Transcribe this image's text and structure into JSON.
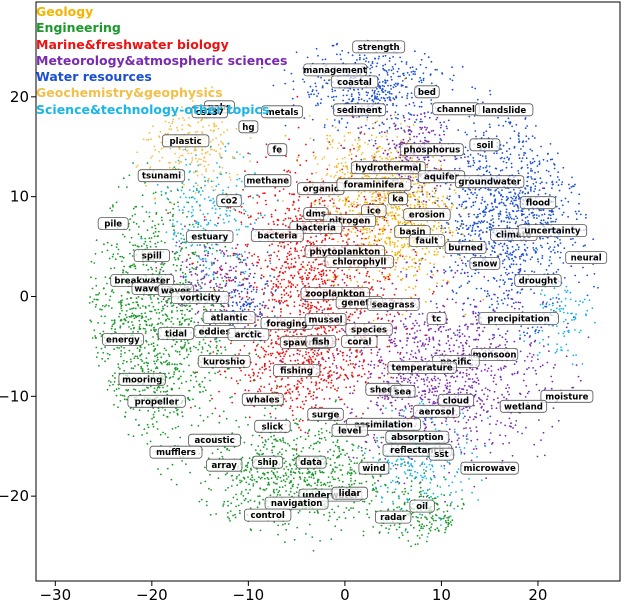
{
  "chart_data": {
    "type": "scatter",
    "title": "",
    "xlabel": "",
    "ylabel": "",
    "xlim": [
      -32,
      28.5
    ],
    "ylim": [
      -28.5,
      29.5
    ],
    "xticks": [
      -30,
      -20,
      -10,
      0,
      10,
      20
    ],
    "yticks": [
      -20,
      -10,
      0,
      10,
      20
    ],
    "xtick_labels": [
      "−30",
      "−20",
      "−10",
      "0",
      "10",
      "20"
    ],
    "ytick_labels": [
      "−20",
      "−10",
      "0",
      "10",
      "20"
    ],
    "legend_placement": "top-left",
    "categories": [
      {
        "name": "Geology",
        "color": "#f4b400"
      },
      {
        "name": "Engineering",
        "color": "#1a9a2a"
      },
      {
        "name": "Marine&freshwater biology",
        "color": "#ee1111"
      },
      {
        "name": "Meteorology&atmospheric sciences",
        "color": "#7a2ab0"
      },
      {
        "name": "Water resources",
        "color": "#1a4fd6"
      },
      {
        "name": "Geochemistry&geophysics",
        "color": "#f2c04a"
      },
      {
        "name": "Science&technology-other topics",
        "color": "#19b6e6"
      }
    ],
    "clusters": [
      {
        "category": 2,
        "x": -3,
        "y": 2,
        "rx": 8,
        "ry": 10,
        "n": 1300
      },
      {
        "category": 2,
        "x": -5,
        "y": -7,
        "rx": 6,
        "ry": 5,
        "n": 400
      },
      {
        "category": 0,
        "x": 5,
        "y": 8,
        "rx": 6,
        "ry": 7,
        "n": 700
      },
      {
        "category": 5,
        "x": 3,
        "y": 12,
        "rx": 6,
        "ry": 5,
        "n": 350
      },
      {
        "category": 5,
        "x": -16,
        "y": 15,
        "rx": 5,
        "ry": 4,
        "n": 250
      },
      {
        "category": 4,
        "x": 17,
        "y": 8,
        "rx": 7,
        "ry": 9,
        "n": 1200
      },
      {
        "category": 4,
        "x": 3,
        "y": 21,
        "rx": 7,
        "ry": 4,
        "n": 500
      },
      {
        "category": 4,
        "x": -10,
        "y": -1,
        "rx": 3,
        "ry": 3,
        "n": 120
      },
      {
        "category": 3,
        "x": 10,
        "y": -8,
        "rx": 10,
        "ry": 8,
        "n": 1100
      },
      {
        "category": 3,
        "x": 7,
        "y": 14,
        "rx": 4,
        "ry": 4,
        "n": 250
      },
      {
        "category": 3,
        "x": -14,
        "y": 2,
        "rx": 4,
        "ry": 4,
        "n": 200
      },
      {
        "category": 1,
        "x": -20,
        "y": -3,
        "rx": 7,
        "ry": 12,
        "n": 1300
      },
      {
        "category": 1,
        "x": -5,
        "y": -18,
        "rx": 9,
        "ry": 5,
        "n": 800
      },
      {
        "category": 1,
        "x": 8,
        "y": -22,
        "rx": 4,
        "ry": 3,
        "n": 200
      },
      {
        "category": 6,
        "x": -14,
        "y": 8,
        "rx": 5,
        "ry": 6,
        "n": 250
      },
      {
        "category": 6,
        "x": 8,
        "y": -16,
        "rx": 5,
        "ry": 5,
        "n": 250
      },
      {
        "category": 6,
        "x": 22,
        "y": -2,
        "rx": 3,
        "ry": 4,
        "n": 100
      }
    ],
    "keywords": [
      {
        "text": "strength",
        "x": 3.5,
        "y": 25
      },
      {
        "text": "management",
        "x": -1,
        "y": 22.7
      },
      {
        "text": "coastal",
        "x": 1,
        "y": 21.5
      },
      {
        "text": "bed",
        "x": 8.5,
        "y": 20.5
      },
      {
        "text": "pahs",
        "x": -13,
        "y": 19
      },
      {
        "text": "metals",
        "x": -6.5,
        "y": 18.5
      },
      {
        "text": "cs137",
        "x": -14,
        "y": 18.5
      },
      {
        "text": "sediment",
        "x": 1.5,
        "y": 18.7
      },
      {
        "text": "channel",
        "x": 11.5,
        "y": 18.8
      },
      {
        "text": "landslide",
        "x": 16.5,
        "y": 18.7
      },
      {
        "text": "hg",
        "x": -10,
        "y": 17
      },
      {
        "text": "plastic",
        "x": -16.5,
        "y": 15.6
      },
      {
        "text": "fe",
        "x": -7,
        "y": 14.7
      },
      {
        "text": "soil",
        "x": 14.5,
        "y": 15.2
      },
      {
        "text": "phosphorus",
        "x": 9,
        "y": 14.7
      },
      {
        "text": "hydrothermal",
        "x": 4.5,
        "y": 12.9
      },
      {
        "text": "tsunami",
        "x": -19,
        "y": 12.1
      },
      {
        "text": "methane",
        "x": -8,
        "y": 11.6
      },
      {
        "text": "organic",
        "x": -2.5,
        "y": 10.8
      },
      {
        "text": "foraminifera",
        "x": 3,
        "y": 11.2
      },
      {
        "text": "aquifer",
        "x": 10,
        "y": 12
      },
      {
        "text": "groundwater",
        "x": 15,
        "y": 11.5
      },
      {
        "text": "co2",
        "x": -12,
        "y": 9.6
      },
      {
        "text": "ka",
        "x": 5.5,
        "y": 9.8
      },
      {
        "text": "flood",
        "x": 20,
        "y": 9.4
      },
      {
        "text": "dms",
        "x": -3,
        "y": 8.3
      },
      {
        "text": "ice",
        "x": 3,
        "y": 8.6
      },
      {
        "text": "erosion",
        "x": 8.5,
        "y": 8.2
      },
      {
        "text": "nitrogen",
        "x": 0.5,
        "y": 7.6
      },
      {
        "text": "pile",
        "x": -24,
        "y": 7.3
      },
      {
        "text": "bacteria",
        "x": -3,
        "y": 6.9
      },
      {
        "text": "basin",
        "x": 7,
        "y": 6.5
      },
      {
        "text": "bacteria",
        "x": -7,
        "y": 6.1
      },
      {
        "text": "estuary",
        "x": -14,
        "y": 6
      },
      {
        "text": "climate",
        "x": 17.5,
        "y": 6.2
      },
      {
        "text": "uncertainty",
        "x": 21.5,
        "y": 6.6
      },
      {
        "text": "fault",
        "x": 8.5,
        "y": 5.6
      },
      {
        "text": "burned",
        "x": 12.5,
        "y": 4.9
      },
      {
        "text": "phytoplankton",
        "x": 0,
        "y": 4.5
      },
      {
        "text": "spill",
        "x": -20,
        "y": 4.1
      },
      {
        "text": "chlorophyll",
        "x": 1.5,
        "y": 3.5
      },
      {
        "text": "neural",
        "x": 25,
        "y": 3.9
      },
      {
        "text": "snow",
        "x": 14.5,
        "y": 3.3
      },
      {
        "text": "breakwater",
        "x": -21,
        "y": 1.6
      },
      {
        "text": "drought",
        "x": 20,
        "y": 1.6
      },
      {
        "text": "wave",
        "x": -20.5,
        "y": 0.8
      },
      {
        "text": "waves",
        "x": -17.5,
        "y": 0.6
      },
      {
        "text": "zooplankton",
        "x": -1,
        "y": 0.3
      },
      {
        "text": "vorticity",
        "x": -15,
        "y": -0.1
      },
      {
        "text": "genetic",
        "x": 1.5,
        "y": -0.6
      },
      {
        "text": "seagrass",
        "x": 5,
        "y": -0.8
      },
      {
        "text": "atlantic",
        "x": -12,
        "y": -2.1
      },
      {
        "text": "tc",
        "x": 9.5,
        "y": -2.2
      },
      {
        "text": "precipitation",
        "x": 18,
        "y": -2.2
      },
      {
        "text": "foraging",
        "x": -6,
        "y": -2.7
      },
      {
        "text": "mussel",
        "x": -2,
        "y": -2.3
      },
      {
        "text": "species",
        "x": 2.5,
        "y": -3.3
      },
      {
        "text": "tidal",
        "x": -17.5,
        "y": -3.7
      },
      {
        "text": "eddies",
        "x": -13.5,
        "y": -3.5
      },
      {
        "text": "arctic",
        "x": -10,
        "y": -3.8
      },
      {
        "text": "energy",
        "x": -23,
        "y": -4.3
      },
      {
        "text": "spawning",
        "x": -4,
        "y": -4.6
      },
      {
        "text": "fish",
        "x": -2.5,
        "y": -4.5
      },
      {
        "text": "coral",
        "x": 1.5,
        "y": -4.5
      },
      {
        "text": "monsoon",
        "x": 15.5,
        "y": -5.8
      },
      {
        "text": "pacific",
        "x": 11.5,
        "y": -6.5
      },
      {
        "text": "temperature",
        "x": 8,
        "y": -7.1
      },
      {
        "text": "kuroshio",
        "x": -12.5,
        "y": -6.5
      },
      {
        "text": "fishing",
        "x": -5,
        "y": -7.4
      },
      {
        "text": "mooring",
        "x": -21,
        "y": -8.3
      },
      {
        "text": "sheet",
        "x": 4,
        "y": -9.3
      },
      {
        "text": "sea",
        "x": 6,
        "y": -9.5
      },
      {
        "text": "moisture",
        "x": 23,
        "y": -10
      },
      {
        "text": "whales",
        "x": -8.5,
        "y": -10.3
      },
      {
        "text": "propeller",
        "x": -19.5,
        "y": -10.5
      },
      {
        "text": "cloud",
        "x": 11.5,
        "y": -10.4
      },
      {
        "text": "wetland",
        "x": 18.5,
        "y": -11
      },
      {
        "text": "aerosol",
        "x": 9.5,
        "y": -11.5
      },
      {
        "text": "surge",
        "x": -2,
        "y": -11.8
      },
      {
        "text": "slick",
        "x": -7.5,
        "y": -13
      },
      {
        "text": "assimilation",
        "x": 4,
        "y": -12.8
      },
      {
        "text": "level",
        "x": 0.5,
        "y": -13.4
      },
      {
        "text": "acoustic",
        "x": -13.5,
        "y": -14.4
      },
      {
        "text": "absorption",
        "x": 7.5,
        "y": -14.1
      },
      {
        "text": "mufflers",
        "x": -17.5,
        "y": -15.6
      },
      {
        "text": "reflectance",
        "x": 7.5,
        "y": -15.4
      },
      {
        "text": "sst",
        "x": 10,
        "y": -15.8
      },
      {
        "text": "array",
        "x": -12.5,
        "y": -16.9
      },
      {
        "text": "ship",
        "x": -8,
        "y": -16.6
      },
      {
        "text": "data",
        "x": -3.5,
        "y": -16.6
      },
      {
        "text": "wind",
        "x": 3,
        "y": -17.2
      },
      {
        "text": "microwave",
        "x": 15,
        "y": -17.2
      },
      {
        "text": "underwater",
        "x": -1.5,
        "y": -19.9
      },
      {
        "text": "lidar",
        "x": 0.5,
        "y": -19.7
      },
      {
        "text": "navigation",
        "x": -5,
        "y": -20.7
      },
      {
        "text": "oil",
        "x": 8,
        "y": -21
      },
      {
        "text": "control",
        "x": -8,
        "y": -21.9
      },
      {
        "text": "radar",
        "x": 5,
        "y": -22.1
      }
    ]
  }
}
